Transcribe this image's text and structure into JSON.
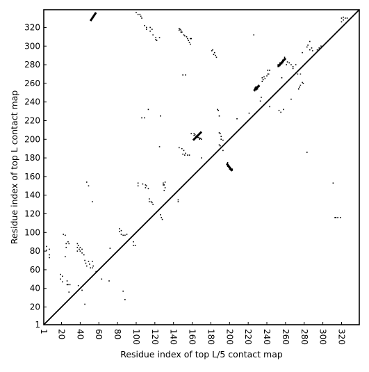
{
  "chart_data": {
    "type": "scatter",
    "title": "",
    "xlabel": "Residue index of top L/5 contact map",
    "ylabel": "Residue index of top L contact map",
    "xlim": [
      1,
      339
    ],
    "ylim": [
      1,
      339
    ],
    "xticks": [
      1,
      20,
      40,
      60,
      80,
      100,
      120,
      140,
      160,
      180,
      200,
      220,
      240,
      260,
      280,
      300,
      320
    ],
    "yticks": [
      1,
      20,
      40,
      60,
      80,
      100,
      120,
      140,
      160,
      180,
      200,
      220,
      240,
      260,
      280,
      300,
      320
    ],
    "diagonal_line": true,
    "grid": false,
    "legend": "none",
    "marker_color": "#000000",
    "series": [
      {
        "values": [
          [
            4,
            85
          ],
          [
            4,
            81
          ],
          [
            7,
            82
          ],
          [
            7,
            76
          ],
          [
            7,
            73
          ],
          [
            19,
            55
          ],
          [
            19,
            50
          ],
          [
            21,
            53
          ],
          [
            21,
            47
          ],
          [
            22,
            98
          ],
          [
            24,
            97
          ],
          [
            24,
            74
          ],
          [
            25,
            88
          ],
          [
            25,
            84
          ],
          [
            26,
            48
          ],
          [
            26,
            44
          ],
          [
            27,
            44
          ],
          [
            27,
            90
          ],
          [
            28,
            88
          ],
          [
            28,
            36
          ],
          [
            29,
            44
          ],
          [
            37,
            88
          ],
          [
            37,
            84
          ],
          [
            37,
            80
          ],
          [
            38,
            86
          ],
          [
            38,
            43
          ],
          [
            39,
            82
          ],
          [
            40,
            80
          ],
          [
            40,
            84
          ],
          [
            42,
            82
          ],
          [
            42,
            78
          ],
          [
            42,
            38
          ],
          [
            44,
            76
          ],
          [
            45,
            70
          ],
          [
            45,
            23
          ],
          [
            46,
            67
          ],
          [
            47,
            154
          ],
          [
            47,
            64
          ],
          [
            49,
            150
          ],
          [
            49,
            69
          ],
          [
            50,
            66
          ],
          [
            51,
            62
          ],
          [
            53,
            133
          ],
          [
            53,
            69
          ],
          [
            53,
            62
          ],
          [
            54,
            64
          ],
          [
            57,
            58
          ],
          [
            63,
            50
          ],
          [
            71,
            48
          ],
          [
            72,
            83
          ],
          [
            82,
            104
          ],
          [
            82,
            101
          ],
          [
            84,
            98
          ],
          [
            84,
            102
          ],
          [
            86,
            37
          ],
          [
            86,
            97
          ],
          [
            88,
            97
          ],
          [
            88,
            28
          ],
          [
            90,
            98
          ],
          [
            97,
            90
          ],
          [
            97,
            86
          ],
          [
            99,
            86
          ],
          [
            100,
            336
          ],
          [
            102,
            334
          ],
          [
            102,
            153
          ],
          [
            102,
            150
          ],
          [
            104,
            334
          ],
          [
            105,
            332
          ],
          [
            106,
            330
          ],
          [
            106,
            223
          ],
          [
            107,
            152
          ],
          [
            109,
            322
          ],
          [
            109,
            223
          ],
          [
            110,
            151
          ],
          [
            110,
            148
          ],
          [
            111,
            320
          ],
          [
            111,
            318
          ],
          [
            111,
            150
          ],
          [
            113,
            232
          ],
          [
            113,
            147
          ],
          [
            114,
            133
          ],
          [
            114,
            136
          ],
          [
            115,
            320
          ],
          [
            115,
            316
          ],
          [
            116,
            133
          ],
          [
            117,
            318
          ],
          [
            117,
            132
          ],
          [
            118,
            130
          ],
          [
            118,
            312
          ],
          [
            121,
            309
          ],
          [
            121,
            307
          ],
          [
            122,
            306
          ],
          [
            125,
            192
          ],
          [
            125,
            309
          ],
          [
            126,
            119
          ],
          [
            126,
            225
          ],
          [
            127,
            116
          ],
          [
            128,
            114
          ],
          [
            129,
            153
          ],
          [
            129,
            151
          ],
          [
            130,
            151
          ],
          [
            130,
            145
          ],
          [
            131,
            154
          ],
          [
            131,
            148
          ],
          [
            145,
            135
          ],
          [
            145,
            133
          ],
          [
            146,
            191
          ],
          [
            146,
            319
          ],
          [
            146,
            317
          ],
          [
            147,
            318
          ],
          [
            148,
            317
          ],
          [
            148,
            315
          ],
          [
            149,
            315
          ],
          [
            149,
            190
          ],
          [
            150,
            184
          ],
          [
            150,
            269
          ],
          [
            151,
            188
          ],
          [
            151,
            312
          ],
          [
            152,
            311
          ],
          [
            152,
            183
          ],
          [
            153,
            269
          ],
          [
            153,
            185
          ],
          [
            154,
            310
          ],
          [
            155,
            308
          ],
          [
            155,
            183
          ],
          [
            156,
            306
          ],
          [
            157,
            183
          ],
          [
            157,
            304
          ],
          [
            158,
            302
          ],
          [
            158,
            308
          ],
          [
            159,
            308
          ],
          [
            159,
            206
          ],
          [
            162,
            206
          ],
          [
            162,
            204
          ],
          [
            163,
            205
          ],
          [
            164,
            203
          ],
          [
            165,
            204
          ],
          [
            166,
            202
          ],
          [
            167,
            202
          ],
          [
            168,
            201
          ],
          [
            168,
            200
          ],
          [
            169,
            201
          ],
          [
            170,
            200
          ],
          [
            170,
            180
          ],
          [
            181,
            295
          ],
          [
            182,
            296
          ],
          [
            183,
            291
          ],
          [
            184,
            293
          ],
          [
            185,
            290
          ],
          [
            186,
            288
          ],
          [
            187,
            232
          ],
          [
            188,
            231
          ],
          [
            189,
            225
          ],
          [
            189,
            207
          ],
          [
            189,
            194
          ],
          [
            190,
            193
          ],
          [
            190,
            206
          ],
          [
            191,
            203
          ],
          [
            191,
            200
          ],
          [
            193,
            199
          ],
          [
            193,
            188
          ],
          [
            197,
            173
          ],
          [
            198,
            171
          ],
          [
            198,
            175
          ],
          [
            199,
            170
          ],
          [
            199,
            172
          ],
          [
            200,
            168
          ],
          [
            201,
            167
          ],
          [
            201,
            169
          ],
          [
            202,
            167
          ],
          [
            203,
            168
          ],
          [
            208,
            222
          ],
          [
            221,
            228
          ],
          [
            226,
            312
          ],
          [
            227,
            252
          ],
          [
            227,
            255
          ],
          [
            228,
            256
          ],
          [
            229,
            253
          ],
          [
            229,
            256
          ],
          [
            230,
            254
          ],
          [
            231,
            256
          ],
          [
            231,
            258
          ],
          [
            232,
            257
          ],
          [
            233,
            241
          ],
          [
            234,
            245
          ],
          [
            235,
            262
          ],
          [
            235,
            266
          ],
          [
            236,
            264
          ],
          [
            237,
            267
          ],
          [
            238,
            265
          ],
          [
            240,
            268
          ],
          [
            241,
            270
          ],
          [
            241,
            274
          ],
          [
            242,
            270
          ],
          [
            243,
            235
          ],
          [
            243,
            274
          ],
          [
            252,
            278
          ],
          [
            252,
            280
          ],
          [
            253,
            231
          ],
          [
            253,
            279
          ],
          [
            254,
            279
          ],
          [
            254,
            282
          ],
          [
            255,
            229
          ],
          [
            255,
            282
          ],
          [
            256,
            281
          ],
          [
            256,
            266
          ],
          [
            257,
            282
          ],
          [
            257,
            285
          ],
          [
            258,
            232
          ],
          [
            258,
            284
          ],
          [
            259,
            285
          ],
          [
            259,
            288
          ],
          [
            260,
            286
          ],
          [
            261,
            280
          ],
          [
            262,
            283
          ],
          [
            264,
            282
          ],
          [
            266,
            243
          ],
          [
            266,
            280
          ],
          [
            268,
            278
          ],
          [
            268,
            276
          ],
          [
            271,
            280
          ],
          [
            273,
            270
          ],
          [
            274,
            254
          ],
          [
            275,
            256
          ],
          [
            276,
            270
          ],
          [
            276,
            258
          ],
          [
            278,
            293
          ],
          [
            278,
            261
          ],
          [
            279,
            260
          ],
          [
            283,
            186
          ],
          [
            283,
            299
          ],
          [
            284,
            301
          ],
          [
            286,
            305
          ],
          [
            286,
            296
          ],
          [
            288,
            298
          ],
          [
            289,
            295
          ],
          [
            294,
            296
          ],
          [
            296,
            298
          ],
          [
            298,
            300
          ],
          [
            311,
            153
          ],
          [
            313,
            116
          ],
          [
            314,
            116
          ],
          [
            316,
            116
          ],
          [
            319,
            116
          ],
          [
            320,
            330
          ],
          [
            320,
            326
          ],
          [
            322,
            328
          ],
          [
            322,
            322
          ],
          [
            322,
            331
          ],
          [
            324,
            330
          ],
          [
            326,
            330
          ]
        ]
      }
    ],
    "clusters": [
      {
        "x_range": [
          51,
          57
        ],
        "y_range": [
          327,
          336
        ]
      },
      {
        "x_range": [
          161,
          170
        ],
        "y_range": [
          199,
          208
        ]
      },
      {
        "x_range": [
          197,
          203
        ],
        "y_range": [
          166,
          174
        ]
      },
      {
        "x_range": [
          226,
          232
        ],
        "y_range": [
          252,
          258
        ]
      },
      {
        "x_range": [
          252,
          260
        ],
        "y_range": [
          278,
          287
        ]
      }
    ]
  }
}
